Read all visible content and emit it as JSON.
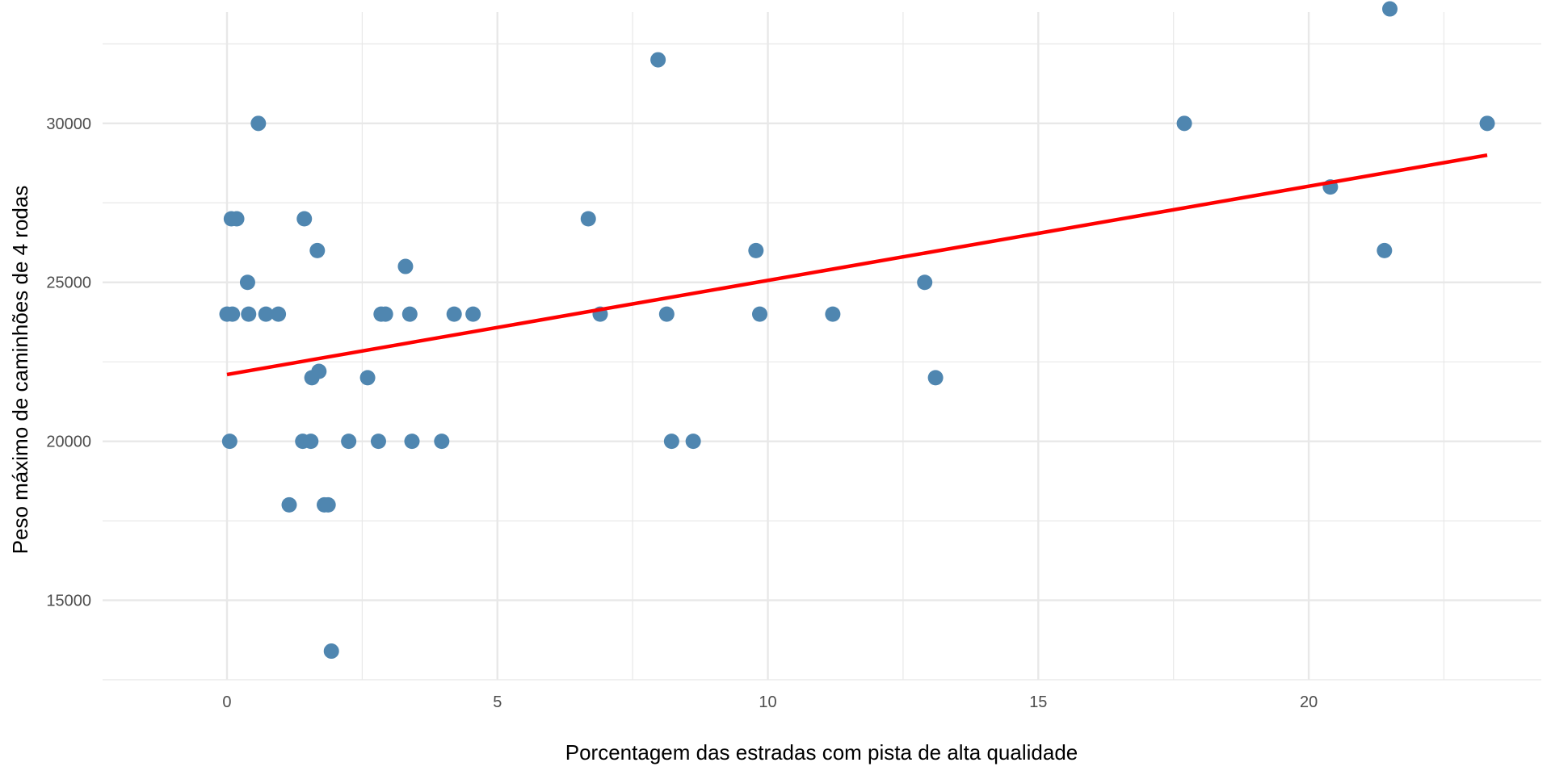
{
  "chart_data": {
    "type": "scatter",
    "title": "",
    "xlabel": "Porcentagem das estradas com pista de alta qualidade",
    "ylabel": "Peso máximo de caminhões de 4 rodas",
    "xlim": [
      -2.3,
      24.3
    ],
    "ylim": [
      12500,
      33500
    ],
    "x_ticks": [
      0,
      5,
      10,
      15,
      20
    ],
    "x_tick_labels": [
      "0",
      "5",
      "10",
      "15",
      "20"
    ],
    "y_ticks": [
      15000,
      20000,
      25000,
      30000
    ],
    "y_tick_labels": [
      "15000",
      "20000",
      "25000",
      "30000"
    ],
    "x_minor_ticks": [
      2.5,
      7.5,
      12.5,
      17.5,
      22.5
    ],
    "y_minor_ticks": [
      12500,
      17500,
      22500,
      27500,
      32500
    ],
    "grid": true,
    "legend": "none",
    "point_color": "#4f86b0",
    "line_color": "#ff0000",
    "grid_color": "#e8e8e8",
    "points": [
      {
        "x": 0.0,
        "y": 24000
      },
      {
        "x": 0.05,
        "y": 20000
      },
      {
        "x": 0.08,
        "y": 27000
      },
      {
        "x": 0.1,
        "y": 24000
      },
      {
        "x": 0.18,
        "y": 27000
      },
      {
        "x": 0.38,
        "y": 25000
      },
      {
        "x": 0.4,
        "y": 24000
      },
      {
        "x": 0.58,
        "y": 30000
      },
      {
        "x": 0.72,
        "y": 24000
      },
      {
        "x": 0.95,
        "y": 24000
      },
      {
        "x": 1.15,
        "y": 18000
      },
      {
        "x": 1.4,
        "y": 20000
      },
      {
        "x": 1.43,
        "y": 27000
      },
      {
        "x": 1.55,
        "y": 20000
      },
      {
        "x": 1.57,
        "y": 22000
      },
      {
        "x": 1.67,
        "y": 26000
      },
      {
        "x": 1.7,
        "y": 22200
      },
      {
        "x": 1.8,
        "y": 18000
      },
      {
        "x": 1.87,
        "y": 18000
      },
      {
        "x": 1.93,
        "y": 13400
      },
      {
        "x": 2.25,
        "y": 20000
      },
      {
        "x": 2.6,
        "y": 22000
      },
      {
        "x": 2.8,
        "y": 20000
      },
      {
        "x": 2.85,
        "y": 24000
      },
      {
        "x": 2.93,
        "y": 24000
      },
      {
        "x": 3.3,
        "y": 25500
      },
      {
        "x": 3.38,
        "y": 24000
      },
      {
        "x": 3.42,
        "y": 20000
      },
      {
        "x": 3.97,
        "y": 20000
      },
      {
        "x": 4.2,
        "y": 24000
      },
      {
        "x": 4.55,
        "y": 24000
      },
      {
        "x": 6.68,
        "y": 27000
      },
      {
        "x": 6.9,
        "y": 24000
      },
      {
        "x": 7.97,
        "y": 32000
      },
      {
        "x": 8.13,
        "y": 24000
      },
      {
        "x": 8.22,
        "y": 20000
      },
      {
        "x": 8.62,
        "y": 20000
      },
      {
        "x": 9.78,
        "y": 26000
      },
      {
        "x": 9.85,
        "y": 24000
      },
      {
        "x": 11.2,
        "y": 24000
      },
      {
        "x": 12.9,
        "y": 25000
      },
      {
        "x": 13.1,
        "y": 22000
      },
      {
        "x": 17.7,
        "y": 30000
      },
      {
        "x": 20.4,
        "y": 28000
      },
      {
        "x": 21.4,
        "y": 26000
      },
      {
        "x": 21.5,
        "y": 33600
      },
      {
        "x": 23.3,
        "y": 30000
      }
    ],
    "fit_line": {
      "x": [
        0.0,
        23.3
      ],
      "y": [
        22100,
        29000
      ]
    }
  }
}
